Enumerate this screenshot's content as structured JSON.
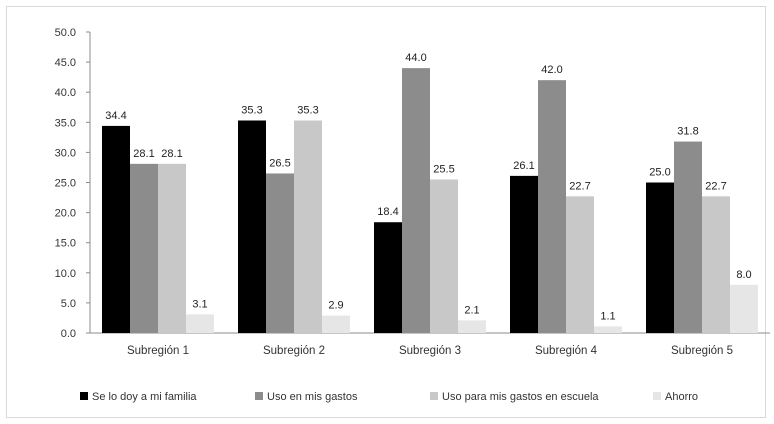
{
  "chart_data": {
    "type": "bar",
    "categories": [
      "Subregión 1",
      "Subregión 2",
      "Subregión 3",
      "Subregión 4",
      "Subregión 5"
    ],
    "series": [
      {
        "name": "Se lo doy a mi familia",
        "color": "#000000",
        "values": [
          34.4,
          35.3,
          18.4,
          26.1,
          25.0
        ]
      },
      {
        "name": "Uso en mis gastos",
        "color": "#8c8c8c",
        "values": [
          28.1,
          26.5,
          44.0,
          42.0,
          31.8
        ]
      },
      {
        "name": "Uso para mis gastos en escuela",
        "color": "#c8c8c8",
        "values": [
          28.1,
          35.3,
          25.5,
          22.7,
          22.7
        ]
      },
      {
        "name": "Ahorro",
        "color": "#e6e6e6",
        "values": [
          3.1,
          2.9,
          2.1,
          1.1,
          8.0
        ]
      }
    ],
    "data_labels": [
      [
        "34.4",
        "35.3",
        "18.4",
        "26.1",
        "25.0"
      ],
      [
        "28.1",
        "26.5",
        "44.0",
        "42.0",
        "31.8"
      ],
      [
        "28.1",
        "35.3",
        "25.5",
        "22.7",
        "22.7"
      ],
      [
        "3.1",
        "2.9",
        "2.1",
        "1.1",
        "8.0"
      ]
    ],
    "yticks": [
      "0.0",
      "5.0",
      "10.0",
      "15.0",
      "20.0",
      "25.0",
      "30.0",
      "35.0",
      "40.0",
      "45.0",
      "50.0"
    ],
    "ylim": [
      0,
      50
    ],
    "grid": false,
    "legend_position": "bottom",
    "title": "",
    "xlabel": "",
    "ylabel": ""
  }
}
